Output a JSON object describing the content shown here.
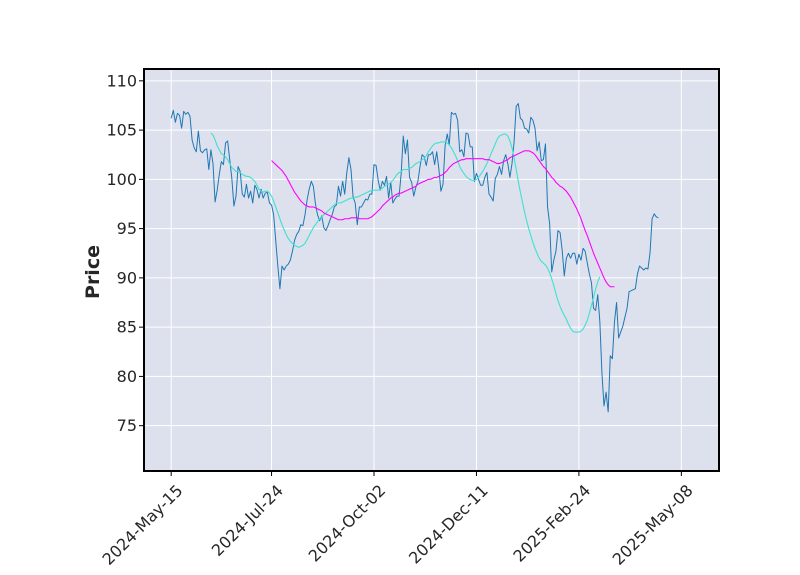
{
  "chart_data": {
    "type": "line",
    "ylabel": "Price",
    "xlabel": "",
    "ylim": [
      70.4,
      111.2
    ],
    "y_ticks": [
      75,
      80,
      85,
      90,
      95,
      100,
      105,
      110
    ],
    "x_tick_labels": [
      "2024-May-15",
      "2024-Jul-24",
      "2024-Oct-02",
      "2024-Dec-11",
      "2025-Feb-24",
      "2025-May-08"
    ],
    "x_tick_positions": [
      0,
      48,
      97,
      146,
      195,
      244
    ],
    "xlim": [
      -13,
      262
    ],
    "grid": true,
    "colors": {
      "background": "#dce1ed",
      "grid": "#ffffff",
      "price": "#1f77b4",
      "ma_short": "#40e0d0",
      "ma_long": "#ff00ff"
    },
    "series": [
      {
        "values": [
          106.2,
          107.0,
          105.8,
          106.7,
          106.5,
          105.2,
          106.9,
          106.6,
          106.8,
          106.4,
          104.0,
          103.2,
          102.8,
          104.9,
          102.9,
          102.7,
          103.0,
          103.1,
          101.0,
          103.0,
          101.6,
          97.7,
          98.9,
          100.5,
          101.8,
          101.5,
          103.7,
          103.9,
          102.0,
          100.1,
          97.3,
          98.3,
          101.3,
          100.8,
          98.5,
          98.2,
          99.5,
          98.1,
          98.8,
          97.6,
          99.4,
          99.0,
          98.1,
          99.0,
          98.1,
          98.6,
          98.7,
          97.6,
          97.4,
          96.4,
          93.8,
          91.2,
          88.9,
          91.2,
          90.8,
          91.2,
          91.4,
          91.8,
          92.7,
          93.8,
          94.4,
          94.7,
          95.4,
          95.3,
          96.4,
          97.9,
          99.0,
          99.8,
          99.3,
          97.5,
          96.4,
          95.8,
          96.3,
          95.1,
          94.8,
          95.3,
          95.9,
          96.4,
          97.2,
          97.4,
          99.3,
          98.3,
          99.8,
          98.5,
          100.7,
          102.2,
          101.0,
          98.2,
          97.6,
          95.4,
          97.2,
          97.2,
          97.6,
          98.0,
          97.9,
          98.5,
          98.5,
          101.5,
          101.4,
          99.9,
          98.9,
          99.8,
          99.4,
          100.3,
          98.1,
          99.7,
          97.6,
          98.0,
          98.3,
          98.3,
          100.6,
          104.4,
          102.6,
          104.0,
          100.2,
          99.7,
          98.3,
          99.2,
          99.8,
          101.3,
          102.5,
          102.3,
          101.4,
          102.5,
          102.5,
          102.8,
          101.5,
          102.8,
          101.1,
          98.8,
          99.5,
          103.4,
          104.6,
          103.5,
          106.8,
          106.6,
          106.7,
          106.0,
          102.8,
          103.0,
          102.3,
          104.7,
          104.6,
          103.3,
          103.3,
          99.8,
          100.6,
          100.0,
          99.4,
          99.4,
          100.2,
          100.7,
          98.5,
          98.2,
          97.8,
          100.1,
          100.5,
          101.3,
          100.5,
          101.9,
          102.5,
          101.6,
          100.2,
          101.6,
          103.8,
          107.4,
          107.7,
          106.2,
          106.0,
          105.2,
          105.1,
          104.7,
          106.3,
          106.0,
          105.2,
          102.9,
          103.8,
          101.9,
          102.0,
          103.6,
          97.2,
          95.5,
          90.6,
          91.8,
          92.7,
          94.8,
          94.6,
          92.8,
          90.2,
          92.0,
          92.5,
          92.0,
          92.5,
          92.5,
          91.4,
          92.4,
          91.8,
          93.0,
          92.7,
          91.5,
          90.4,
          89.5,
          86.9,
          86.7,
          88.3,
          85.6,
          80.4,
          77.0,
          78.4,
          76.4,
          82.1,
          81.8,
          85.5,
          87.5,
          83.9,
          84.5,
          85.1,
          86.0,
          86.9,
          88.6,
          88.7,
          88.8,
          88.9,
          90.4,
          91.2,
          91.0,
          90.8,
          91.0,
          90.9,
          92.5,
          96.0,
          96.5,
          96.2,
          96.1
        ]
      },
      {
        "start_index": 19,
        "values": [
          104.7,
          104.5,
          104.0,
          103.4,
          103.0,
          102.6,
          102.5,
          102.3,
          102.0,
          101.6,
          101.2,
          101.0,
          100.8,
          100.8,
          100.7,
          100.5,
          100.4,
          100.3,
          100.3,
          100.2,
          100.0,
          99.8,
          99.4,
          99.0,
          98.8,
          98.7,
          98.8,
          98.8,
          98.6,
          98.3,
          97.8,
          97.2,
          96.6,
          96.0,
          95.4,
          94.9,
          94.4,
          94.0,
          93.7,
          93.5,
          93.3,
          93.2,
          93.1,
          93.2,
          93.3,
          93.5,
          93.9,
          94.3,
          94.7,
          95.1,
          95.4,
          95.7,
          96.0,
          96.2,
          96.4,
          96.6,
          96.8,
          97.0,
          97.2,
          97.4,
          97.6,
          97.6,
          97.6,
          97.7,
          97.8,
          97.9,
          98.0,
          98.1,
          98.1,
          98.2,
          98.2,
          98.3,
          98.4,
          98.5,
          98.6,
          98.7,
          98.8,
          98.9,
          98.9,
          98.9,
          98.9,
          99.0,
          99.1,
          99.3,
          99.4,
          99.5,
          99.7,
          99.9,
          100.2,
          100.5,
          100.7,
          100.8,
          101.0,
          101.0,
          101.0,
          101.1,
          101.2,
          101.4,
          101.6,
          101.7,
          101.8,
          102.0,
          102.1,
          102.4,
          102.8,
          103.1,
          103.4,
          103.6,
          103.7,
          103.7,
          103.8,
          103.8,
          103.8,
          103.7,
          103.5,
          103.2,
          102.8,
          102.4,
          101.9,
          101.3,
          100.9,
          100.6,
          100.3,
          100.1,
          100.0,
          99.9,
          99.9,
          100.0,
          100.2,
          100.5,
          100.8,
          101.2,
          101.6,
          102.1,
          102.6,
          103.1,
          103.6,
          104.1,
          104.4,
          104.5,
          104.6,
          104.6,
          104.4,
          103.9,
          103.2,
          102.2,
          101.0,
          99.8,
          98.7,
          97.7,
          96.7,
          95.8,
          95.0,
          94.3,
          93.6,
          93.0,
          92.5,
          92.0,
          91.7,
          91.5,
          91.3,
          91.0,
          90.5,
          89.9,
          89.2,
          88.4,
          87.7,
          87.1,
          86.6,
          86.2,
          85.8,
          85.3,
          84.9,
          84.6,
          84.5,
          84.5,
          84.5,
          84.6,
          84.8,
          85.2,
          85.7,
          86.4,
          87.2,
          88.0,
          88.9,
          89.6,
          90.1
        ]
      },
      {
        "start_index": 48,
        "values": [
          101.9,
          101.7,
          101.5,
          101.3,
          101.1,
          100.9,
          100.6,
          100.3,
          99.9,
          99.5,
          99.1,
          98.7,
          98.4,
          98.1,
          97.8,
          97.6,
          97.4,
          97.3,
          97.2,
          97.2,
          97.2,
          97.1,
          97.0,
          96.9,
          96.8,
          96.6,
          96.5,
          96.4,
          96.3,
          96.2,
          96.1,
          96.0,
          95.9,
          95.9,
          95.9,
          96.0,
          96.0,
          96.0,
          96.1,
          96.1,
          96.1,
          96.1,
          96.0,
          96.0,
          96.0,
          96.0,
          96.0,
          96.1,
          96.2,
          96.4,
          96.6,
          96.8,
          97.0,
          97.3,
          97.5,
          97.7,
          97.9,
          98.1,
          98.2,
          98.4,
          98.5,
          98.6,
          98.6,
          98.7,
          98.8,
          98.9,
          99.0,
          99.1,
          99.2,
          99.3,
          99.5,
          99.6,
          99.7,
          99.8,
          99.9,
          100.0,
          100.0,
          100.1,
          100.2,
          100.2,
          100.3,
          100.4,
          100.5,
          100.7,
          100.9,
          101.2,
          101.4,
          101.6,
          101.7,
          101.8,
          101.9,
          102.0,
          102.0,
          102.1,
          102.1,
          102.1,
          102.1,
          102.1,
          102.1,
          102.1,
          102.1,
          102.1,
          102.0,
          102.0,
          102.0,
          101.9,
          101.8,
          101.7,
          101.6,
          101.6,
          101.7,
          101.8,
          101.9,
          102.0,
          102.2,
          102.3,
          102.4,
          102.5,
          102.6,
          102.7,
          102.8,
          102.9,
          102.9,
          102.9,
          102.8,
          102.7,
          102.5,
          102.2,
          101.9,
          101.6,
          101.3,
          101.1,
          100.8,
          100.5,
          100.2,
          100.0,
          99.7,
          99.5,
          99.3,
          99.2,
          99.0,
          98.8,
          98.5,
          98.2,
          97.8,
          97.4,
          97.0,
          96.5,
          96.0,
          95.4,
          94.8,
          94.3,
          93.7,
          93.1,
          92.5,
          92.0,
          91.5,
          91.0,
          90.5,
          90.0,
          89.6,
          89.3,
          89.1,
          89.1,
          89.1
        ]
      }
    ]
  }
}
